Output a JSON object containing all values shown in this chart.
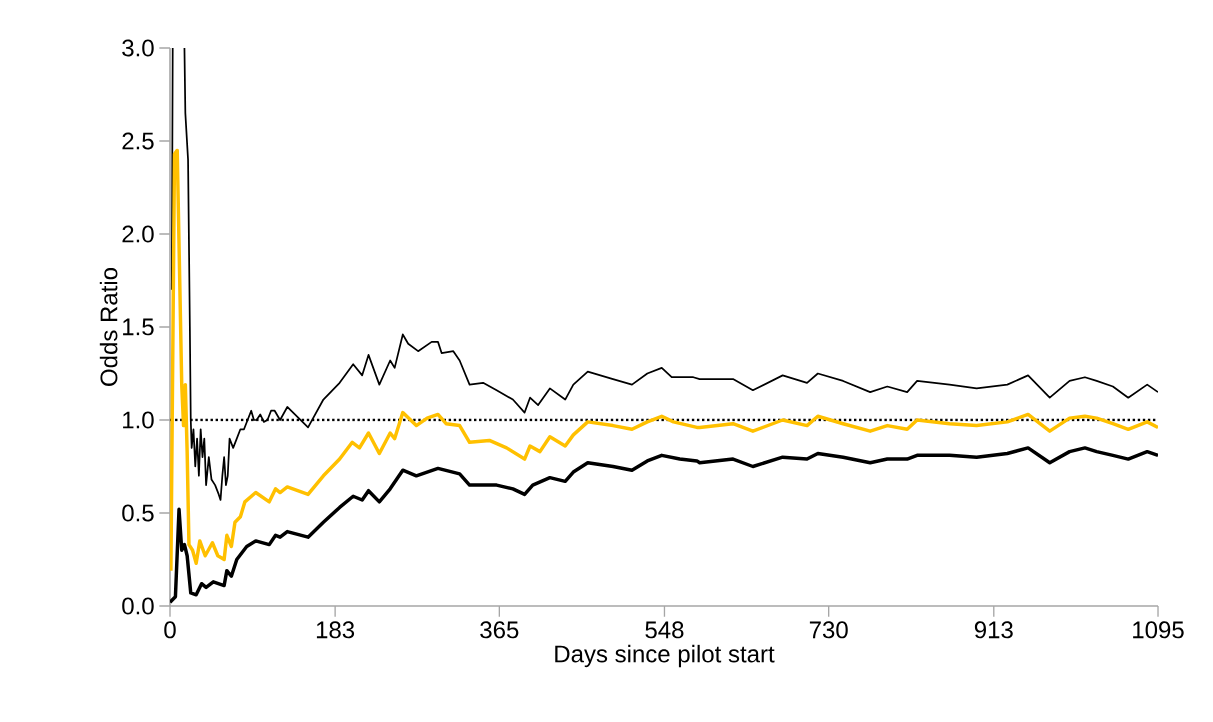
{
  "chart_data": {
    "type": "line",
    "xlabel": "Days since pilot start",
    "ylabel": "Odds Ratio",
    "xlim": [
      0,
      1095
    ],
    "ylim": [
      0,
      3.0
    ],
    "xticks": [
      0,
      183,
      365,
      548,
      730,
      913,
      1095
    ],
    "yticks": [
      {
        "value": 0,
        "label": "0.0"
      },
      {
        "value": 0.5,
        "label": "0.5"
      },
      {
        "value": 1,
        "label": "1.0"
      },
      {
        "value": 1.5,
        "label": "1.5"
      },
      {
        "value": 2,
        "label": "2.0"
      },
      {
        "value": 2.5,
        "label": "2.5"
      },
      {
        "value": 3,
        "label": "3.0"
      }
    ],
    "ref_lines": [
      {
        "axis": "y",
        "value": 1,
        "color": "#000000",
        "line_style": "dotted"
      }
    ],
    "series": [
      {
        "color": "#000000",
        "x": [
          2,
          3,
          9,
          16,
          17,
          20,
          22,
          23,
          24,
          26,
          28,
          30,
          32,
          34,
          36,
          38,
          40,
          43,
          46,
          50,
          54,
          56,
          58,
          60,
          62,
          64,
          66,
          70,
          74,
          78,
          82,
          86,
          90,
          93,
          96,
          100,
          104,
          108,
          112,
          116,
          122,
          130,
          153,
          170,
          188,
          203,
          213,
          220,
          232,
          244,
          249,
          258,
          264,
          275,
          290,
          297,
          301,
          314,
          321,
          332,
          347,
          362,
          380,
          393,
          399,
          408,
          421,
          438,
          447,
          463,
          477,
          491,
          512,
          529,
          545,
          556,
          580,
          587,
          624,
          646,
          679,
          706,
          718,
          746,
          776,
          795,
          817,
          828,
          864,
          894,
          928,
          951,
          975,
          997,
          1014,
          1027,
          1045,
          1062,
          1083,
          1095
        ],
        "values": [
          1.7,
          3.0,
          null,
          3.0,
          2.65,
          2.4,
          1.5,
          1.0,
          0.85,
          0.95,
          0.75,
          0.9,
          0.7,
          0.95,
          0.8,
          0.9,
          0.65,
          0.8,
          0.68,
          0.65,
          0.6,
          0.57,
          0.7,
          0.8,
          0.65,
          0.7,
          0.9,
          0.85,
          0.9,
          0.95,
          0.95,
          1.0,
          1.05,
          1.0,
          1.0,
          1.03,
          0.99,
          1.0,
          1.05,
          1.05,
          1.0,
          1.07,
          0.96,
          1.11,
          1.2,
          1.3,
          1.24,
          1.35,
          1.19,
          1.32,
          1.28,
          1.46,
          1.41,
          1.37,
          1.42,
          1.42,
          1.36,
          1.37,
          1.32,
          1.19,
          1.2,
          1.16,
          1.11,
          1.04,
          1.12,
          1.08,
          1.17,
          1.11,
          1.19,
          1.26,
          1.24,
          1.22,
          1.19,
          1.25,
          1.28,
          1.23,
          1.23,
          1.22,
          1.22,
          1.16,
          1.24,
          1.2,
          1.25,
          1.21,
          1.15,
          1.18,
          1.15,
          1.21,
          1.19,
          1.17,
          1.19,
          1.24,
          1.12,
          1.21,
          1.23,
          1.21,
          1.18,
          1.12,
          1.19,
          1.15
        ]
      },
      {
        "color": "#ffc000",
        "x": [
          1,
          5,
          8,
          13,
          15,
          17,
          19,
          21,
          25,
          29,
          33,
          39,
          47,
          53,
          60,
          63,
          68,
          72,
          78,
          83,
          95,
          110,
          117,
          122,
          130,
          153,
          170,
          188,
          202,
          210,
          220,
          232,
          244,
          249,
          258,
          273,
          285,
          297,
          306,
          321,
          332,
          354,
          373,
          393,
          399,
          410,
          421,
          438,
          447,
          463,
          491,
          512,
          529,
          545,
          558,
          584,
          587,
          624,
          646,
          679,
          706,
          718,
          746,
          776,
          795,
          817,
          828,
          864,
          894,
          928,
          951,
          975,
          997,
          1014,
          1027,
          1045,
          1062,
          1083,
          1095
        ],
        "values": [
          0.19,
          2.43,
          2.45,
          1.19,
          0.97,
          1.19,
          0.83,
          0.33,
          0.3,
          0.23,
          0.35,
          0.27,
          0.34,
          0.27,
          0.25,
          0.38,
          0.32,
          0.45,
          0.48,
          0.56,
          0.61,
          0.56,
          0.63,
          0.61,
          0.64,
          0.6,
          0.7,
          0.79,
          0.88,
          0.85,
          0.93,
          0.82,
          0.93,
          0.9,
          1.04,
          0.97,
          1.01,
          1.03,
          0.98,
          0.97,
          0.88,
          0.89,
          0.85,
          0.79,
          0.86,
          0.83,
          0.91,
          0.86,
          0.92,
          0.99,
          0.97,
          0.95,
          0.99,
          1.02,
          0.99,
          0.96,
          0.96,
          0.98,
          0.94,
          1.0,
          0.97,
          1.02,
          0.98,
          0.94,
          0.97,
          0.95,
          1.0,
          0.98,
          0.97,
          0.99,
          1.03,
          0.94,
          1.01,
          1.02,
          1.01,
          0.98,
          0.95,
          0.99,
          0.96
        ]
      },
      {
        "color": "#000000",
        "x": [
          0,
          6,
          10,
          13,
          16,
          19,
          23,
          29,
          35,
          40,
          48,
          60,
          63,
          68,
          74,
          85,
          95,
          110,
          117,
          122,
          130,
          153,
          170,
          188,
          203,
          213,
          220,
          232,
          244,
          258,
          273,
          297,
          321,
          332,
          362,
          380,
          393,
          402,
          421,
          438,
          447,
          463,
          491,
          512,
          529,
          545,
          565,
          584,
          587,
          624,
          646,
          679,
          706,
          718,
          746,
          776,
          795,
          817,
          828,
          864,
          894,
          928,
          951,
          975,
          997,
          1014,
          1027,
          1045,
          1062,
          1083,
          1095
        ],
        "values": [
          0.02,
          0.05,
          0.52,
          0.3,
          0.33,
          0.27,
          0.07,
          0.06,
          0.12,
          0.1,
          0.13,
          0.11,
          0.19,
          0.16,
          0.25,
          0.32,
          0.35,
          0.33,
          0.38,
          0.37,
          0.4,
          0.37,
          0.45,
          0.53,
          0.59,
          0.57,
          0.62,
          0.56,
          0.63,
          0.73,
          0.7,
          0.74,
          0.71,
          0.65,
          0.65,
          0.63,
          0.6,
          0.65,
          0.69,
          0.67,
          0.72,
          0.77,
          0.75,
          0.73,
          0.78,
          0.81,
          0.79,
          0.78,
          0.77,
          0.79,
          0.75,
          0.8,
          0.79,
          0.82,
          0.8,
          0.77,
          0.79,
          0.79,
          0.81,
          0.81,
          0.8,
          0.82,
          0.85,
          0.77,
          0.83,
          0.85,
          0.83,
          0.81,
          0.79,
          0.83,
          0.81
        ]
      }
    ]
  }
}
